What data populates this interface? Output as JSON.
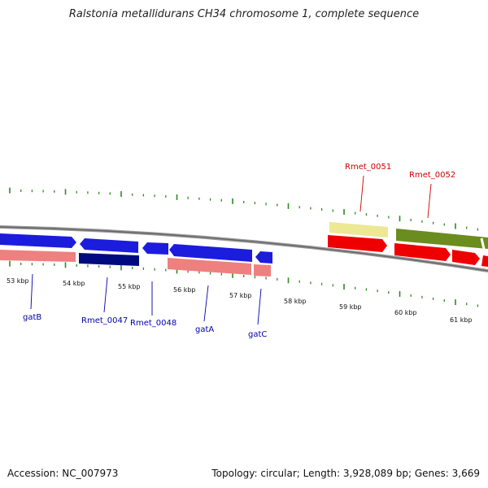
{
  "title": "Ralstonia metallidurans CH34 chromosome 1, complete sequence",
  "footer": {
    "accession": "Accession: NC_007973",
    "info": "Topology: circular; Length: 3,928,089 bp; Genes: 3,669"
  },
  "colors": {
    "backbone": "#888888",
    "tick": "#2e8b22",
    "forward_gene": "#1c1cdd",
    "forward_dark": "#000a80",
    "reverse_rna": "#ee8080",
    "red_gene": "#ee0000",
    "yellow_gene": "#ece894",
    "olive_gene": "#6b8c1f",
    "label_blue": "#0000aa",
    "label_red": "#cc0000"
  },
  "scale_labels": [
    "53 kbp",
    "54 kbp",
    "55 kbp",
    "56 kbp",
    "57 kbp",
    "58 kbp",
    "59 kbp",
    "60 kbp",
    "61 kbp"
  ],
  "gene_labels": {
    "gatB": "gatB",
    "Rmet_0047": "Rmet_0047",
    "Rmet_0048": "Rmet_0048",
    "gatA": "gatA",
    "gatC": "gatC",
    "Rmet_0051": "Rmet_0051",
    "Rmet_0052": "Rmet_0052"
  }
}
